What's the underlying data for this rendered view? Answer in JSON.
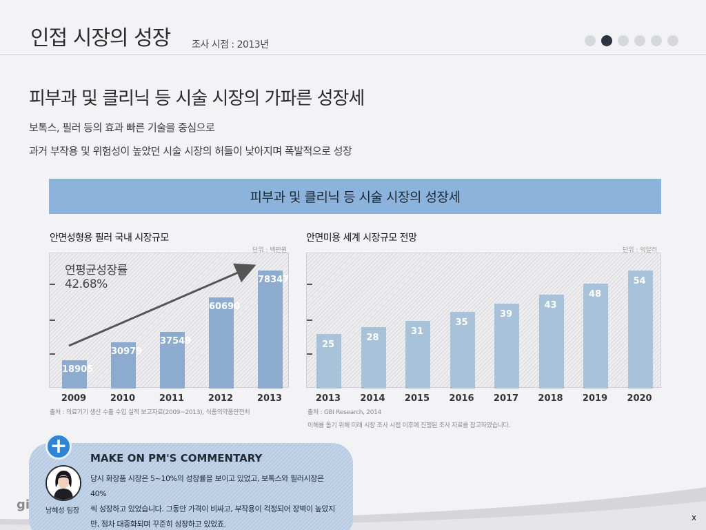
{
  "header": {
    "title": "인접 시장의 성장",
    "subtitle": "조사 시점 : 2013년",
    "pagination": {
      "total": 6,
      "active_index": 1
    }
  },
  "main": {
    "heading": "피부과 및 클리닉 등 시술 시장의 가파른 성장세",
    "description_lines": [
      "보톡스, 필러 등의 효과 빠른 기술을 중심으로",
      "과거 부작용 및 위험성이 높았던 시술 시장의 허들이 낮아지며 폭발적으로 성장"
    ],
    "banner_title": "피부과 및 클리닉 등 시술 시장의 성장세"
  },
  "chart_data": [
    {
      "type": "bar",
      "title": "안면성형용 필러 국내 시장규모",
      "unit": "단위 : 백만원",
      "categories": [
        "2009",
        "2010",
        "2011",
        "2012",
        "2013"
      ],
      "values": [
        18905,
        30979,
        37549,
        60690,
        78347
      ],
      "ylim": [
        0,
        90000
      ],
      "annotation": {
        "label": "연평균성장률",
        "value": "42.68%"
      },
      "source": "출처 : 의료기기 생산 수출 수입 실적 보고자료(2009~2013), 식품의약품안전처",
      "color": "#8cabcf"
    },
    {
      "type": "bar",
      "title": "안면미용 세계 시장규모 전망",
      "unit": "단위 : 억달러",
      "categories": [
        "2013",
        "2014",
        "2015",
        "2016",
        "2017",
        "2018",
        "2019",
        "2020"
      ],
      "values": [
        25,
        28,
        31,
        35,
        39,
        43,
        48,
        54
      ],
      "ylim": [
        0,
        62
      ],
      "source": "출처 : GBI Research, 2014",
      "note": "이해를 돕기 위해 미래 시장 조사 시점 이후에 진행된 조사 자료를 참고하였습니다.",
      "color": "#a7c2d9"
    }
  ],
  "commentary": {
    "title": "MAKE ON PM'S COMMENTARY",
    "lines": [
      "당시 화장품 시장은 5~10%의 성장률을 보이고 있었고, 보톡스와 필러시장은 40%",
      "씩 성장하고 있었습니다. 그동안 가격이 비싸고, 부작용이 걱정되어 장벽이 높았지",
      "만, 점차 대중화되며 꾸준히 성장하고 있었죠."
    ],
    "author": "남혜성 팀장",
    "expand_icon": "plus-icon"
  },
  "footer": {
    "logo_fragment": "gi",
    "close_label": "x"
  },
  "colors": {
    "banner": "#8bb3db",
    "accent": "#2f84d3",
    "active_dot": "#2e3440"
  }
}
